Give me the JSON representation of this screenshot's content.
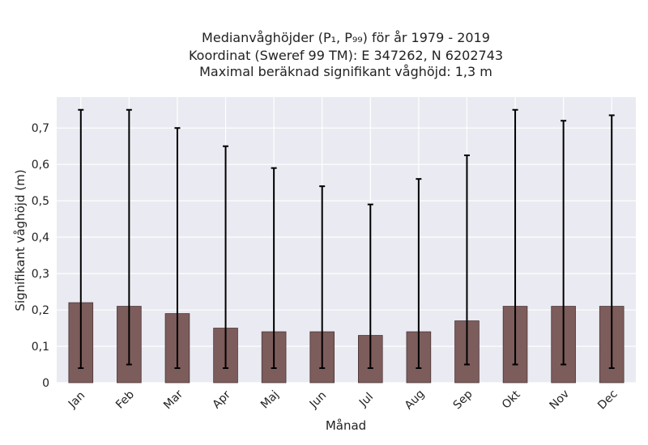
{
  "chart_data": {
    "type": "bar",
    "title_lines": [
      "Medianvåghöjder (P₁, P₉₉) för år 1979 - 2019",
      "Koordinat (Sweref 99 TM): E 347262, N 6202743",
      "Maximal beräknad signifikant våghöjd: 1,3 m"
    ],
    "xlabel": "Månad",
    "ylabel": "Signifikant våghöjd (m)",
    "categories": [
      "Jan",
      "Feb",
      "Mar",
      "Apr",
      "Maj",
      "Jun",
      "Jul",
      "Aug",
      "Sep",
      "Okt",
      "Nov",
      "Dec"
    ],
    "series": [
      {
        "values": [
          0.22,
          0.21,
          0.19,
          0.15,
          0.14,
          0.14,
          0.13,
          0.14,
          0.17,
          0.21,
          0.21,
          0.21
        ],
        "p1": [
          0.04,
          0.05,
          0.04,
          0.04,
          0.04,
          0.04,
          0.04,
          0.04,
          0.05,
          0.05,
          0.05,
          0.04
        ],
        "p99": [
          0.75,
          0.75,
          0.7,
          0.65,
          0.59,
          0.54,
          0.49,
          0.56,
          0.625,
          0.75,
          0.72,
          0.735
        ]
      }
    ],
    "yticks": [
      0,
      0.1,
      0.2,
      0.3,
      0.4,
      0.5,
      0.6,
      0.7
    ],
    "ytick_labels": [
      "0",
      "0,1",
      "0,2",
      "0,3",
      "0,4",
      "0,5",
      "0,6",
      "0,7"
    ],
    "ylim": [
      0,
      0.785
    ],
    "grid": true,
    "colors": {
      "bar": "#7d5c5c",
      "bar_edge": "#4a3535",
      "errorbar": "#000000",
      "plot_bg": "#eaeaf2",
      "grid": "#ffffff"
    }
  }
}
